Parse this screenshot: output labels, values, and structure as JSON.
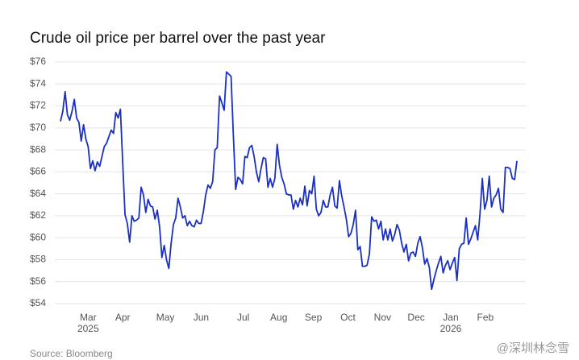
{
  "chart_data": {
    "type": "line",
    "title": "Crude oil price per barrel over the past year",
    "source": "Source: Bloomberg",
    "watermark": "@深圳林念雪",
    "series": [
      {
        "name": "Crude oil",
        "color": "#1a2fc4",
        "values": [
          70.6,
          71.5,
          73.3,
          71.2,
          70.7,
          71.5,
          72.6,
          70.9,
          70.5,
          68.8,
          70.3,
          69.0,
          68.3,
          66.3,
          67.0,
          66.1,
          66.9,
          66.5,
          67.4,
          68.3,
          68.6,
          69.2,
          69.8,
          69.5,
          71.4,
          70.9,
          71.7,
          66.8,
          62.1,
          61.3,
          59.6,
          62.0,
          61.5,
          61.6,
          61.8,
          64.6,
          63.9,
          62.3,
          63.5,
          62.9,
          62.8,
          61.7,
          62.5,
          61.0,
          58.2,
          59.3,
          58.0,
          57.2,
          59.5,
          61.2,
          61.8,
          63.6,
          62.8,
          61.8,
          62.0,
          61.1,
          61.5,
          61.1,
          61.0,
          61.6,
          61.3,
          61.3,
          62.4,
          63.9,
          64.8,
          64.5,
          65.1,
          68.0,
          68.2,
          72.9,
          72.3,
          71.6,
          75.1,
          74.9,
          74.7,
          69.3,
          64.4,
          65.5,
          65.3,
          64.9,
          67.4,
          67.3,
          68.2,
          68.4,
          67.4,
          66.0,
          65.1,
          66.3,
          67.3,
          67.2,
          64.6,
          65.4,
          64.6,
          65.4,
          68.5,
          66.6,
          65.5,
          64.9,
          64.0,
          63.9,
          63.9,
          62.6,
          63.4,
          62.8,
          63.6,
          63.0,
          64.7,
          62.9,
          64.3,
          64.0,
          65.6,
          62.6,
          62.0,
          62.3,
          63.4,
          62.8,
          62.8,
          63.9,
          64.6,
          62.9,
          62.7,
          65.2,
          63.8,
          62.8,
          61.7,
          60.1,
          60.4,
          61.2,
          62.5,
          58.9,
          59.2,
          57.4,
          57.4,
          57.5,
          58.5,
          61.9,
          61.5,
          61.6,
          60.8,
          61.5,
          59.8,
          60.8,
          59.8,
          60.8,
          59.7,
          60.3,
          61.2,
          60.7,
          59.5,
          58.7,
          59.4,
          57.9,
          58.6,
          58.7,
          58.3,
          59.5,
          60.1,
          59.1,
          57.6,
          58.1,
          57.3,
          55.3,
          56.2,
          57.0,
          57.7,
          58.3,
          56.8,
          57.5,
          57.9,
          57.1,
          57.7,
          58.2,
          56.1,
          59.0,
          59.4,
          59.5,
          61.8,
          59.4,
          59.9,
          60.5,
          61.1,
          59.8,
          62.2,
          65.4,
          62.6,
          63.4,
          65.6,
          62.8,
          63.6,
          63.9,
          64.5,
          62.6,
          62.3,
          66.4,
          66.4,
          66.3,
          65.4,
          65.3,
          67.0
        ]
      }
    ],
    "xlim": [
      0,
      198
    ],
    "xticks": [
      {
        "value": 12,
        "label": "Mar"
      },
      {
        "value": 27,
        "label": "Apr"
      },
      {
        "value": 45.5,
        "label": "May"
      },
      {
        "value": 61,
        "label": "Jun"
      },
      {
        "value": 79.3,
        "label": "Jul"
      },
      {
        "value": 94.7,
        "label": "Aug"
      },
      {
        "value": 109.7,
        "label": "Sep"
      },
      {
        "value": 124.7,
        "label": "Oct"
      },
      {
        "value": 139.7,
        "label": "Nov"
      },
      {
        "value": 154.3,
        "label": "Dec"
      },
      {
        "value": 169.3,
        "label": "Jan"
      },
      {
        "value": 184.3,
        "label": "Feb"
      }
    ],
    "year_labels": [
      {
        "value": 12,
        "label": "2025"
      },
      {
        "value": 169.3,
        "label": "2026"
      }
    ],
    "ylim": [
      54,
      76
    ],
    "yticks": [
      {
        "value": 54,
        "label": "$54"
      },
      {
        "value": 56,
        "label": "$56"
      },
      {
        "value": 58,
        "label": "$58"
      },
      {
        "value": 60,
        "label": "$60"
      },
      {
        "value": 62,
        "label": "$62"
      },
      {
        "value": 64,
        "label": "$64"
      },
      {
        "value": 66,
        "label": "$66"
      },
      {
        "value": 68,
        "label": "$68"
      },
      {
        "value": 70,
        "label": "$70"
      },
      {
        "value": 72,
        "label": "$72"
      },
      {
        "value": 74,
        "label": "$74"
      },
      {
        "value": 76,
        "label": "$76"
      }
    ],
    "grid": true
  }
}
